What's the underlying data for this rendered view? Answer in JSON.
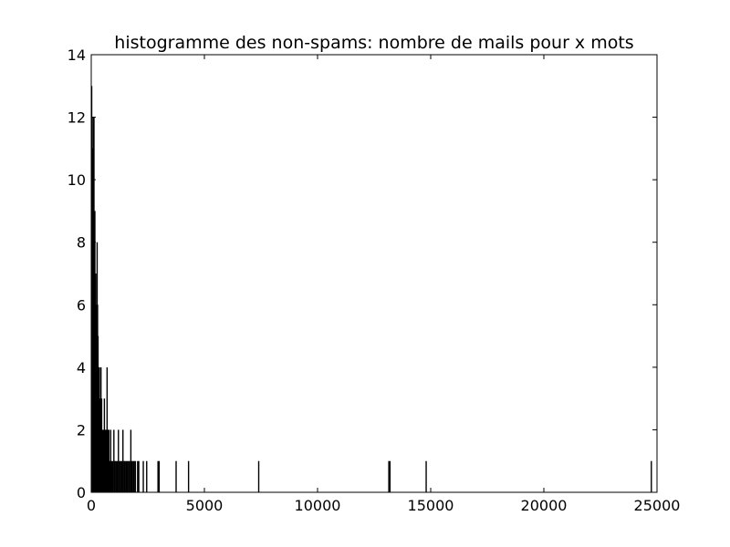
{
  "chart_data": {
    "type": "bar",
    "title": "histogramme des non-spams: nombre de mails pour x mots",
    "xlabel": "",
    "ylabel": "",
    "xlim": [
      0,
      25000
    ],
    "ylim": [
      0,
      14
    ],
    "grid": false,
    "legend": "none",
    "bar_color": "#000000",
    "xticks": [
      0,
      5000,
      10000,
      15000,
      20000,
      25000
    ],
    "xtick_labels": [
      "0",
      "5000",
      "10000",
      "15000",
      "20000",
      "25000"
    ],
    "yticks": [
      0,
      2,
      4,
      6,
      8,
      10,
      12,
      14
    ],
    "ytick_labels": [
      "0",
      "2",
      "4",
      "6",
      "8",
      "10",
      "12",
      "14"
    ],
    "x": [
      20,
      40,
      60,
      80,
      100,
      120,
      140,
      160,
      180,
      200,
      220,
      240,
      260,
      280,
      300,
      320,
      340,
      360,
      380,
      400,
      430,
      460,
      500,
      540,
      580,
      620,
      660,
      700,
      740,
      780,
      820,
      860,
      900,
      950,
      1000,
      1050,
      1100,
      1150,
      1200,
      1250,
      1300,
      1350,
      1400,
      1450,
      1500,
      1550,
      1600,
      1650,
      1700,
      1750,
      1800,
      1850,
      1900,
      1950,
      2050,
      2100,
      2300,
      2450,
      2950,
      3000,
      3750,
      4300,
      7400,
      13150,
      13200,
      14800,
      24750
    ],
    "values": [
      13,
      11,
      9,
      12,
      10,
      12,
      8,
      9,
      7,
      6,
      5,
      7,
      8,
      6,
      5,
      4,
      3,
      4,
      3,
      2,
      4,
      3,
      2,
      2,
      3,
      2,
      2,
      4,
      2,
      2,
      1,
      2,
      1,
      1,
      2,
      1,
      1,
      1,
      2,
      1,
      1,
      1,
      2,
      1,
      1,
      1,
      1,
      1,
      1,
      2,
      1,
      1,
      1,
      1,
      1,
      1,
      1,
      1,
      1,
      1,
      1,
      1,
      1,
      1,
      1,
      1,
      1
    ]
  }
}
